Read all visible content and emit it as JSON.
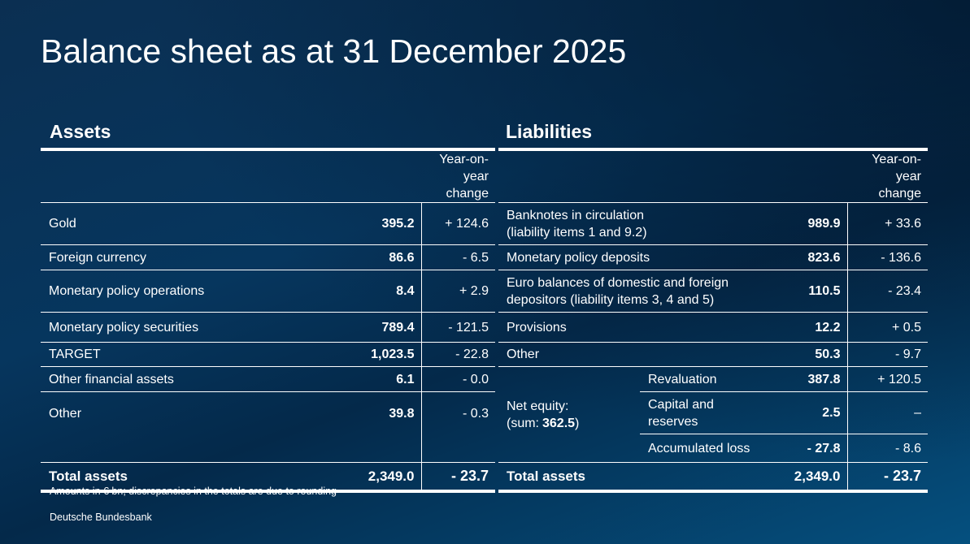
{
  "title": "Balance sheet as at 31 December 2025",
  "assets": {
    "heading": "Assets",
    "change_header": [
      "Year-on-year",
      "change"
    ],
    "rows": [
      {
        "label": [
          "Gold"
        ],
        "value": "395.2",
        "change": "+ 124.6"
      },
      {
        "label": [
          "Foreign currency"
        ],
        "value": "86.6",
        "change": "- 6.5"
      },
      {
        "label": [
          "Monetary policy operations"
        ],
        "value": "8.4",
        "change": "+ 2.9"
      },
      {
        "label": [
          "Monetary policy securities"
        ],
        "value": "789.4",
        "change": "- 121.5"
      },
      {
        "label": [
          "TARGET"
        ],
        "value": "1,023.5",
        "change": "- 22.8"
      },
      {
        "label": [
          "Other financial assets"
        ],
        "value": "6.1",
        "change": "- 0.0"
      },
      {
        "label": [
          "Other"
        ],
        "value": "39.8",
        "change": "- 0.3"
      }
    ],
    "total": {
      "label": "Total assets",
      "value": "2,349.0",
      "change": "- 23.7"
    }
  },
  "liabilities": {
    "heading": "Liabilities",
    "change_header": [
      "Year-on-year",
      "change"
    ],
    "rows": [
      {
        "label": [
          "Banknotes in circulation",
          "(liability items 1 and 9.2)"
        ],
        "value": "989.9",
        "change": "+ 33.6"
      },
      {
        "label": [
          "Monetary policy deposits"
        ],
        "value": "823.6",
        "change": "- 136.6"
      },
      {
        "label": [
          "Euro balances of domestic and foreign",
          "depositors (liability items 3, 4 and 5)"
        ],
        "value": "110.5",
        "change": "- 23.4"
      },
      {
        "label": [
          "Provisions"
        ],
        "value": "12.2",
        "change": "+ 0.5"
      },
      {
        "label": [
          "Other"
        ],
        "value": "50.3",
        "change": "- 9.7"
      }
    ],
    "net_equity": {
      "label": "Net equity:",
      "sum_prefix": "(sum:",
      "sum": "362.5",
      "sum_suffix": ")",
      "items": [
        {
          "label": [
            "Revaluation"
          ],
          "value": "387.8",
          "change": "+ 120.5"
        },
        {
          "label": [
            "Capital and",
            "reserves"
          ],
          "value": "2.5",
          "change": "–"
        },
        {
          "label": [
            "Accumulated loss"
          ],
          "value": "- 27.8",
          "change": "- 8.6"
        }
      ]
    },
    "total": {
      "label": "Total assets",
      "value": "2,349.0",
      "change": "- 23.7"
    }
  },
  "footnote": "Amounts in € bn; discrepancies in the totals are due to rounding",
  "source": "Deutsche Bundesbank"
}
